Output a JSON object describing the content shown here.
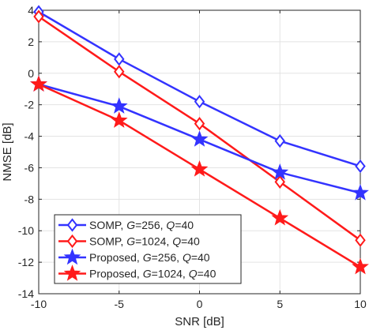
{
  "chart_data": {
    "type": "line",
    "xlabel": "SNR [dB]",
    "ylabel": "NMSE [dB]",
    "xlim": [
      -10,
      10
    ],
    "ylim": [
      -14,
      4
    ],
    "xticks": [
      -10,
      -5,
      0,
      5,
      10
    ],
    "yticks": [
      -14,
      -12,
      -10,
      -8,
      -6,
      -4,
      -2,
      0,
      2,
      4
    ],
    "grid": true,
    "legend_position": "bottom-left",
    "x": [
      -10,
      -5,
      0,
      5,
      10
    ],
    "series": [
      {
        "name": "SOMP, G=256, Q=40",
        "legend": [
          {
            "t": "SOMP, ",
            "i": false
          },
          {
            "t": "G",
            "i": true
          },
          {
            "t": "=256, ",
            "i": false
          },
          {
            "t": "Q",
            "i": true
          },
          {
            "t": "=40",
            "i": false
          }
        ],
        "color": "#3333ff",
        "marker": "diamond",
        "values": [
          3.9,
          0.9,
          -1.8,
          -4.3,
          -5.9
        ]
      },
      {
        "name": "SOMP, G=1024, Q=40",
        "legend": [
          {
            "t": "SOMP, ",
            "i": false
          },
          {
            "t": "G",
            "i": true
          },
          {
            "t": "=1024, ",
            "i": false
          },
          {
            "t": "Q",
            "i": true
          },
          {
            "t": "=40",
            "i": false
          }
        ],
        "color": "#ff1a1a",
        "marker": "diamond",
        "values": [
          3.6,
          0.1,
          -3.2,
          -6.9,
          -10.6
        ]
      },
      {
        "name": "Proposed, G=256, Q=40",
        "legend": [
          {
            "t": "Proposed, ",
            "i": false
          },
          {
            "t": "G",
            "i": true
          },
          {
            "t": "=256, ",
            "i": false
          },
          {
            "t": "Q",
            "i": true
          },
          {
            "t": "=40",
            "i": false
          }
        ],
        "color": "#3333ff",
        "marker": "star",
        "values": [
          -0.7,
          -2.1,
          -4.2,
          -6.3,
          -7.6
        ]
      },
      {
        "name": "Proposed, G=1024, Q=40",
        "legend": [
          {
            "t": "Proposed, ",
            "i": false
          },
          {
            "t": "G",
            "i": true
          },
          {
            "t": "=1024, ",
            "i": false
          },
          {
            "t": "Q",
            "i": true
          },
          {
            "t": "=40",
            "i": false
          }
        ],
        "color": "#ff1a1a",
        "marker": "star",
        "values": [
          -0.7,
          -3.0,
          -6.1,
          -9.2,
          -12.3
        ]
      }
    ]
  }
}
